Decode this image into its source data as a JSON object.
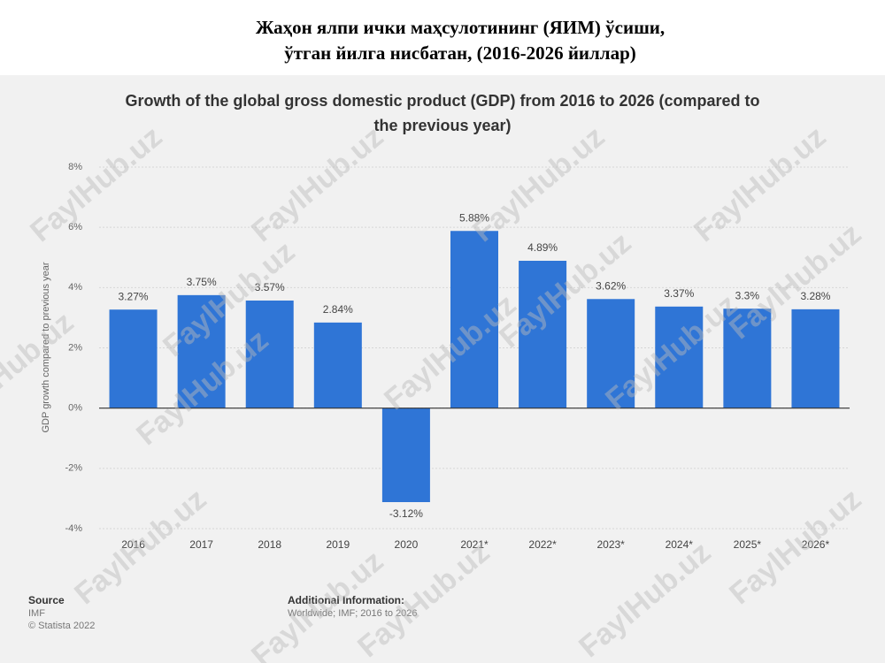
{
  "header": {
    "title_lines": [
      "Жаҳон ялпи ички маҳсулотининг (ЯИМ) ўсиши,",
      "ўтган йилга нисбатан, (2016-2026 йиллар)"
    ]
  },
  "watermark": "FaylHub.uz",
  "chart_data": {
    "type": "bar",
    "title_lines": [
      "Growth of the global gross domestic product (GDP) from 2016 to 2026 (compared to",
      "the previous year)"
    ],
    "y_label": "GDP growth compared to previous year",
    "categories": [
      "2016",
      "2017",
      "2018",
      "2019",
      "2020",
      "2021*",
      "2022*",
      "2023*",
      "2024*",
      "2025*",
      "2026*"
    ],
    "values": [
      3.27,
      3.75,
      3.57,
      2.84,
      -3.12,
      5.88,
      4.89,
      3.62,
      3.37,
      3.3,
      3.28
    ],
    "value_labels": [
      "3.27%",
      "3.75%",
      "3.57%",
      "2.84%",
      "-3.12%",
      "5.88%",
      "4.89%",
      "3.62%",
      "3.37%",
      "3.3%",
      "3.28%"
    ],
    "color": "#2f75d6",
    "ylim": [
      -4,
      8
    ],
    "yticks": [
      {
        "value": -4,
        "label": "-4%"
      },
      {
        "value": -2,
        "label": "-2%"
      },
      {
        "value": 0,
        "label": "0%"
      },
      {
        "value": 2,
        "label": "2%"
      },
      {
        "value": 4,
        "label": "4%"
      },
      {
        "value": 6,
        "label": "6%"
      },
      {
        "value": 8,
        "label": "8%"
      }
    ],
    "grid": true,
    "source": {
      "heading": "Source",
      "lines": [
        "IMF",
        "© Statista 2022"
      ]
    },
    "additional_info": {
      "heading": "Additional Information:",
      "text": "Worldwide; IMF; 2016 to 2026"
    }
  }
}
